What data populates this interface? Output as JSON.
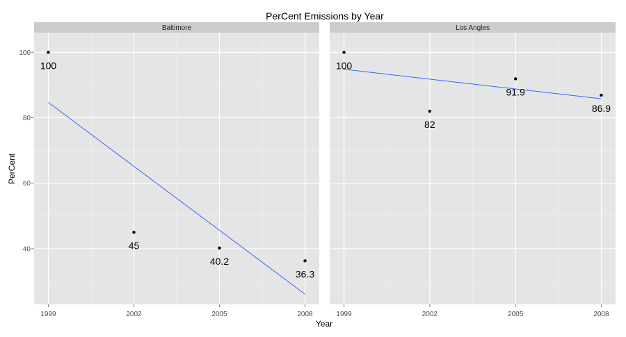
{
  "chart_data": {
    "type": "scatter",
    "title": "PerCent Emissions by Year",
    "xlabel": "Year",
    "ylabel": "PerCent",
    "x_ticks": [
      1999,
      2002,
      2005,
      2008
    ],
    "y_ticks": [
      40,
      60,
      80,
      100
    ],
    "xlim": [
      1998.5,
      2008.5
    ],
    "ylim": [
      23,
      106
    ],
    "grid": true,
    "legend": "none",
    "colors": {
      "panel_background": "#e5e5e5",
      "strip_background": "#cccccc",
      "grid": "#ffffff",
      "points": "#000000",
      "trend_line": "#3366ff"
    },
    "panels": [
      {
        "name": "Baltimore",
        "points": [
          {
            "x": 1999,
            "y": 100,
            "label": "100"
          },
          {
            "x": 2002,
            "y": 45,
            "label": "45"
          },
          {
            "x": 2005,
            "y": 40.2,
            "label": "40.2"
          },
          {
            "x": 2008,
            "y": 36.3,
            "label": "36.3"
          }
        ],
        "trend": {
          "x": [
            1999,
            2008
          ],
          "y": [
            84.7,
            26.1
          ]
        }
      },
      {
        "name": "Los Angles",
        "points": [
          {
            "x": 1999,
            "y": 100,
            "label": "100"
          },
          {
            "x": 2002,
            "y": 82,
            "label": "82"
          },
          {
            "x": 2005,
            "y": 91.9,
            "label": "91.9"
          },
          {
            "x": 2008,
            "y": 86.9,
            "label": "86.9"
          }
        ],
        "trend": {
          "x": [
            1999,
            2008
          ],
          "y": [
            94.8,
            85.8
          ]
        }
      }
    ]
  }
}
